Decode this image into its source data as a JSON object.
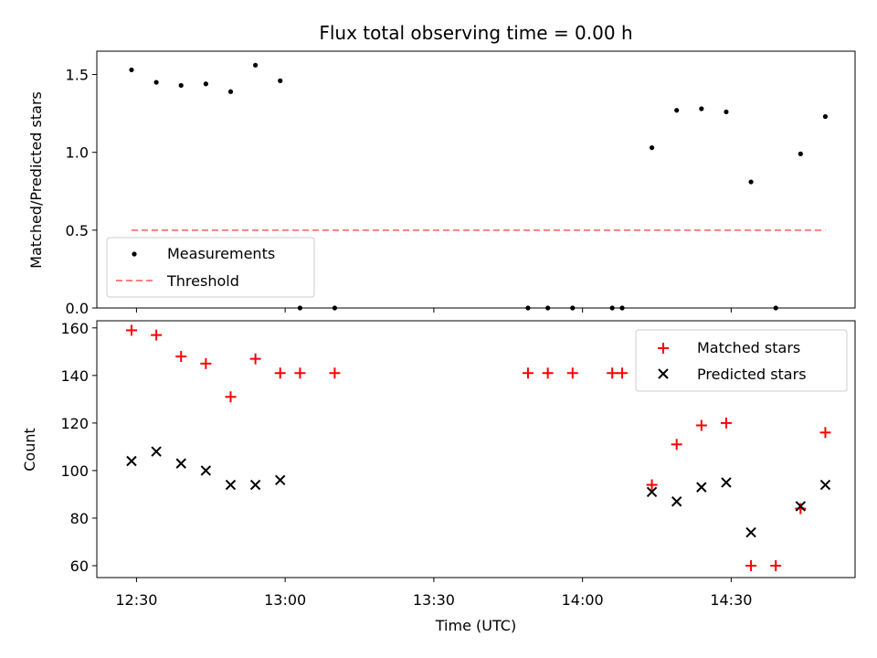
{
  "chart_data": [
    {
      "type": "scatter",
      "title": "Flux total observing time = 0.00 h",
      "xlabel": "",
      "ylabel": "Matched/Predicted stars",
      "ylim": [
        0,
        1.65
      ],
      "yticks": [
        0.0,
        0.5,
        1.0,
        1.5
      ],
      "ytick_labels": [
        "0.0",
        "0.5",
        "1.0",
        "1.5"
      ],
      "x_axis": "time",
      "xlim": [
        "12:22",
        "14:55"
      ],
      "xticks": [
        "12:30",
        "13:00",
        "13:30",
        "14:00",
        "14:30"
      ],
      "show_xtick_labels": false,
      "grid": false,
      "legend_position": "lower-left",
      "series": [
        {
          "name": "Measurements",
          "kind": "points",
          "color": "#000000",
          "x": [
            "12:29",
            "12:34",
            "12:39",
            "12:44",
            "12:49",
            "12:54",
            "12:59",
            "13:03",
            "13:10",
            "13:49",
            "13:53",
            "13:58",
            "14:06",
            "14:08",
            "14:14",
            "14:19",
            "14:24",
            "14:29",
            "14:34",
            "14:39",
            "14:44",
            "14:49"
          ],
          "y": [
            1.53,
            1.45,
            1.43,
            1.44,
            1.39,
            1.56,
            1.46,
            0.0,
            0.0,
            0.0,
            0.0,
            0.0,
            0.0,
            0.0,
            1.03,
            1.27,
            1.28,
            1.26,
            0.81,
            0.0,
            0.99,
            1.23
          ]
        },
        {
          "name": "Threshold",
          "kind": "dashed-line",
          "color": "#ff7f7f",
          "x": [
            "12:29",
            "14:49"
          ],
          "y": [
            0.5,
            0.5
          ]
        }
      ]
    },
    {
      "type": "scatter",
      "title": "",
      "xlabel": "Time (UTC)",
      "ylabel": "Count",
      "ylim": [
        55,
        163
      ],
      "yticks": [
        60,
        80,
        100,
        120,
        140,
        160
      ],
      "ytick_labels": [
        "60",
        "80",
        "100",
        "120",
        "140",
        "160"
      ],
      "x_axis": "time",
      "xlim": [
        "12:22",
        "14:55"
      ],
      "xticks": [
        "12:30",
        "13:00",
        "13:30",
        "14:00",
        "14:30"
      ],
      "xtick_labels": [
        "12:30",
        "13:00",
        "13:30",
        "14:00",
        "14:30"
      ],
      "show_xtick_labels": true,
      "grid": false,
      "legend_position": "upper-right",
      "series": [
        {
          "name": "Matched stars",
          "marker": "plus",
          "color": "#ff0000",
          "x": [
            "12:29",
            "12:34",
            "12:39",
            "12:44",
            "12:49",
            "12:54",
            "12:59",
            "13:03",
            "13:10",
            "13:49",
            "13:53",
            "13:58",
            "14:06",
            "14:08",
            "14:14",
            "14:19",
            "14:24",
            "14:29",
            "14:34",
            "14:39",
            "14:44",
            "14:49"
          ],
          "y": [
            159,
            157,
            148,
            145,
            131,
            147,
            141,
            141,
            141,
            141,
            141,
            141,
            141,
            141,
            94,
            111,
            119,
            120,
            60,
            60,
            84,
            116
          ]
        },
        {
          "name": "Predicted stars",
          "marker": "x",
          "color": "#000000",
          "x": [
            "12:29",
            "12:34",
            "12:39",
            "12:44",
            "12:49",
            "12:54",
            "12:59",
            "14:14",
            "14:19",
            "14:24",
            "14:29",
            "14:34",
            "14:44",
            "14:49"
          ],
          "y": [
            104,
            108,
            103,
            100,
            94,
            94,
            96,
            91,
            87,
            93,
            95,
            74,
            85,
            94
          ]
        }
      ]
    }
  ]
}
